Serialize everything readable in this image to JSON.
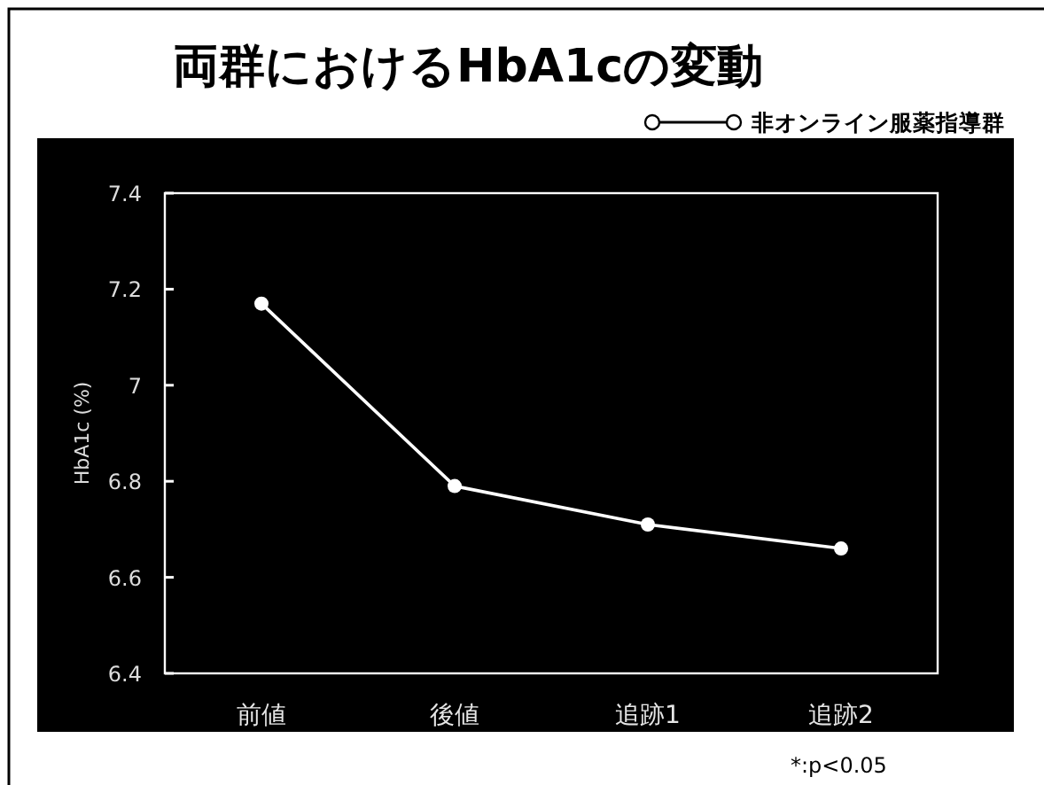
{
  "chart_data": {
    "type": "line",
    "title": "両群におけるHbA1cの変動",
    "ylabel": "HbA1c (%)",
    "categories": [
      "前値",
      "後値",
      "追跡1",
      "追跡2"
    ],
    "series": [
      {
        "name": "非オンライン服薬指導群",
        "color": "#ffffff",
        "values": [
          7.17,
          6.79,
          6.71,
          6.66
        ]
      }
    ],
    "ylim": [
      6.4,
      7.4
    ],
    "yticks": [
      6.4,
      6.6,
      6.8,
      7,
      7.2,
      7.4
    ],
    "marker": "circle",
    "legend": "top right",
    "annotations": [
      "*:p<0.05"
    ]
  }
}
